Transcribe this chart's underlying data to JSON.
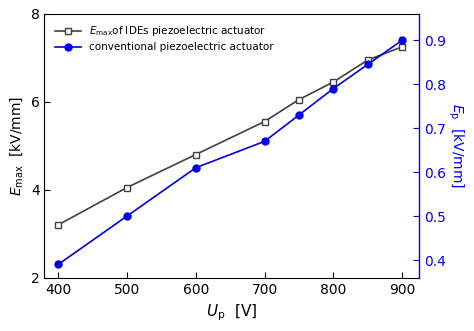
{
  "x": [
    400,
    500,
    600,
    700,
    750,
    800,
    850,
    900
  ],
  "y_emax": [
    3.2,
    4.05,
    4.8,
    5.55,
    6.05,
    6.45,
    6.95,
    7.25
  ],
  "y_ep": [
    0.39,
    0.5,
    0.61,
    0.67,
    0.73,
    0.79,
    0.845,
    0.9
  ],
  "xlabel": "$\\mathit{U}_{\\mathrm{p}}$  [V]",
  "ylabel_left": "$E_{\\mathrm{max}}$  [kV/mm]",
  "ylabel_right": "$E_{\\mathrm{p}}$  [kV/mm]",
  "legend1": "$E_{\\mathrm{max}}$of IDEs piezoelectric actuator",
  "legend2": "conventional piezoelectric actuator",
  "xlim": [
    380,
    925
  ],
  "ylim_left": [
    2.0,
    8.0
  ],
  "ylim_right": [
    0.36,
    0.96
  ],
  "color_emax": "#404040",
  "color_ep": "#0000ee",
  "bg_color": "#ffffff"
}
